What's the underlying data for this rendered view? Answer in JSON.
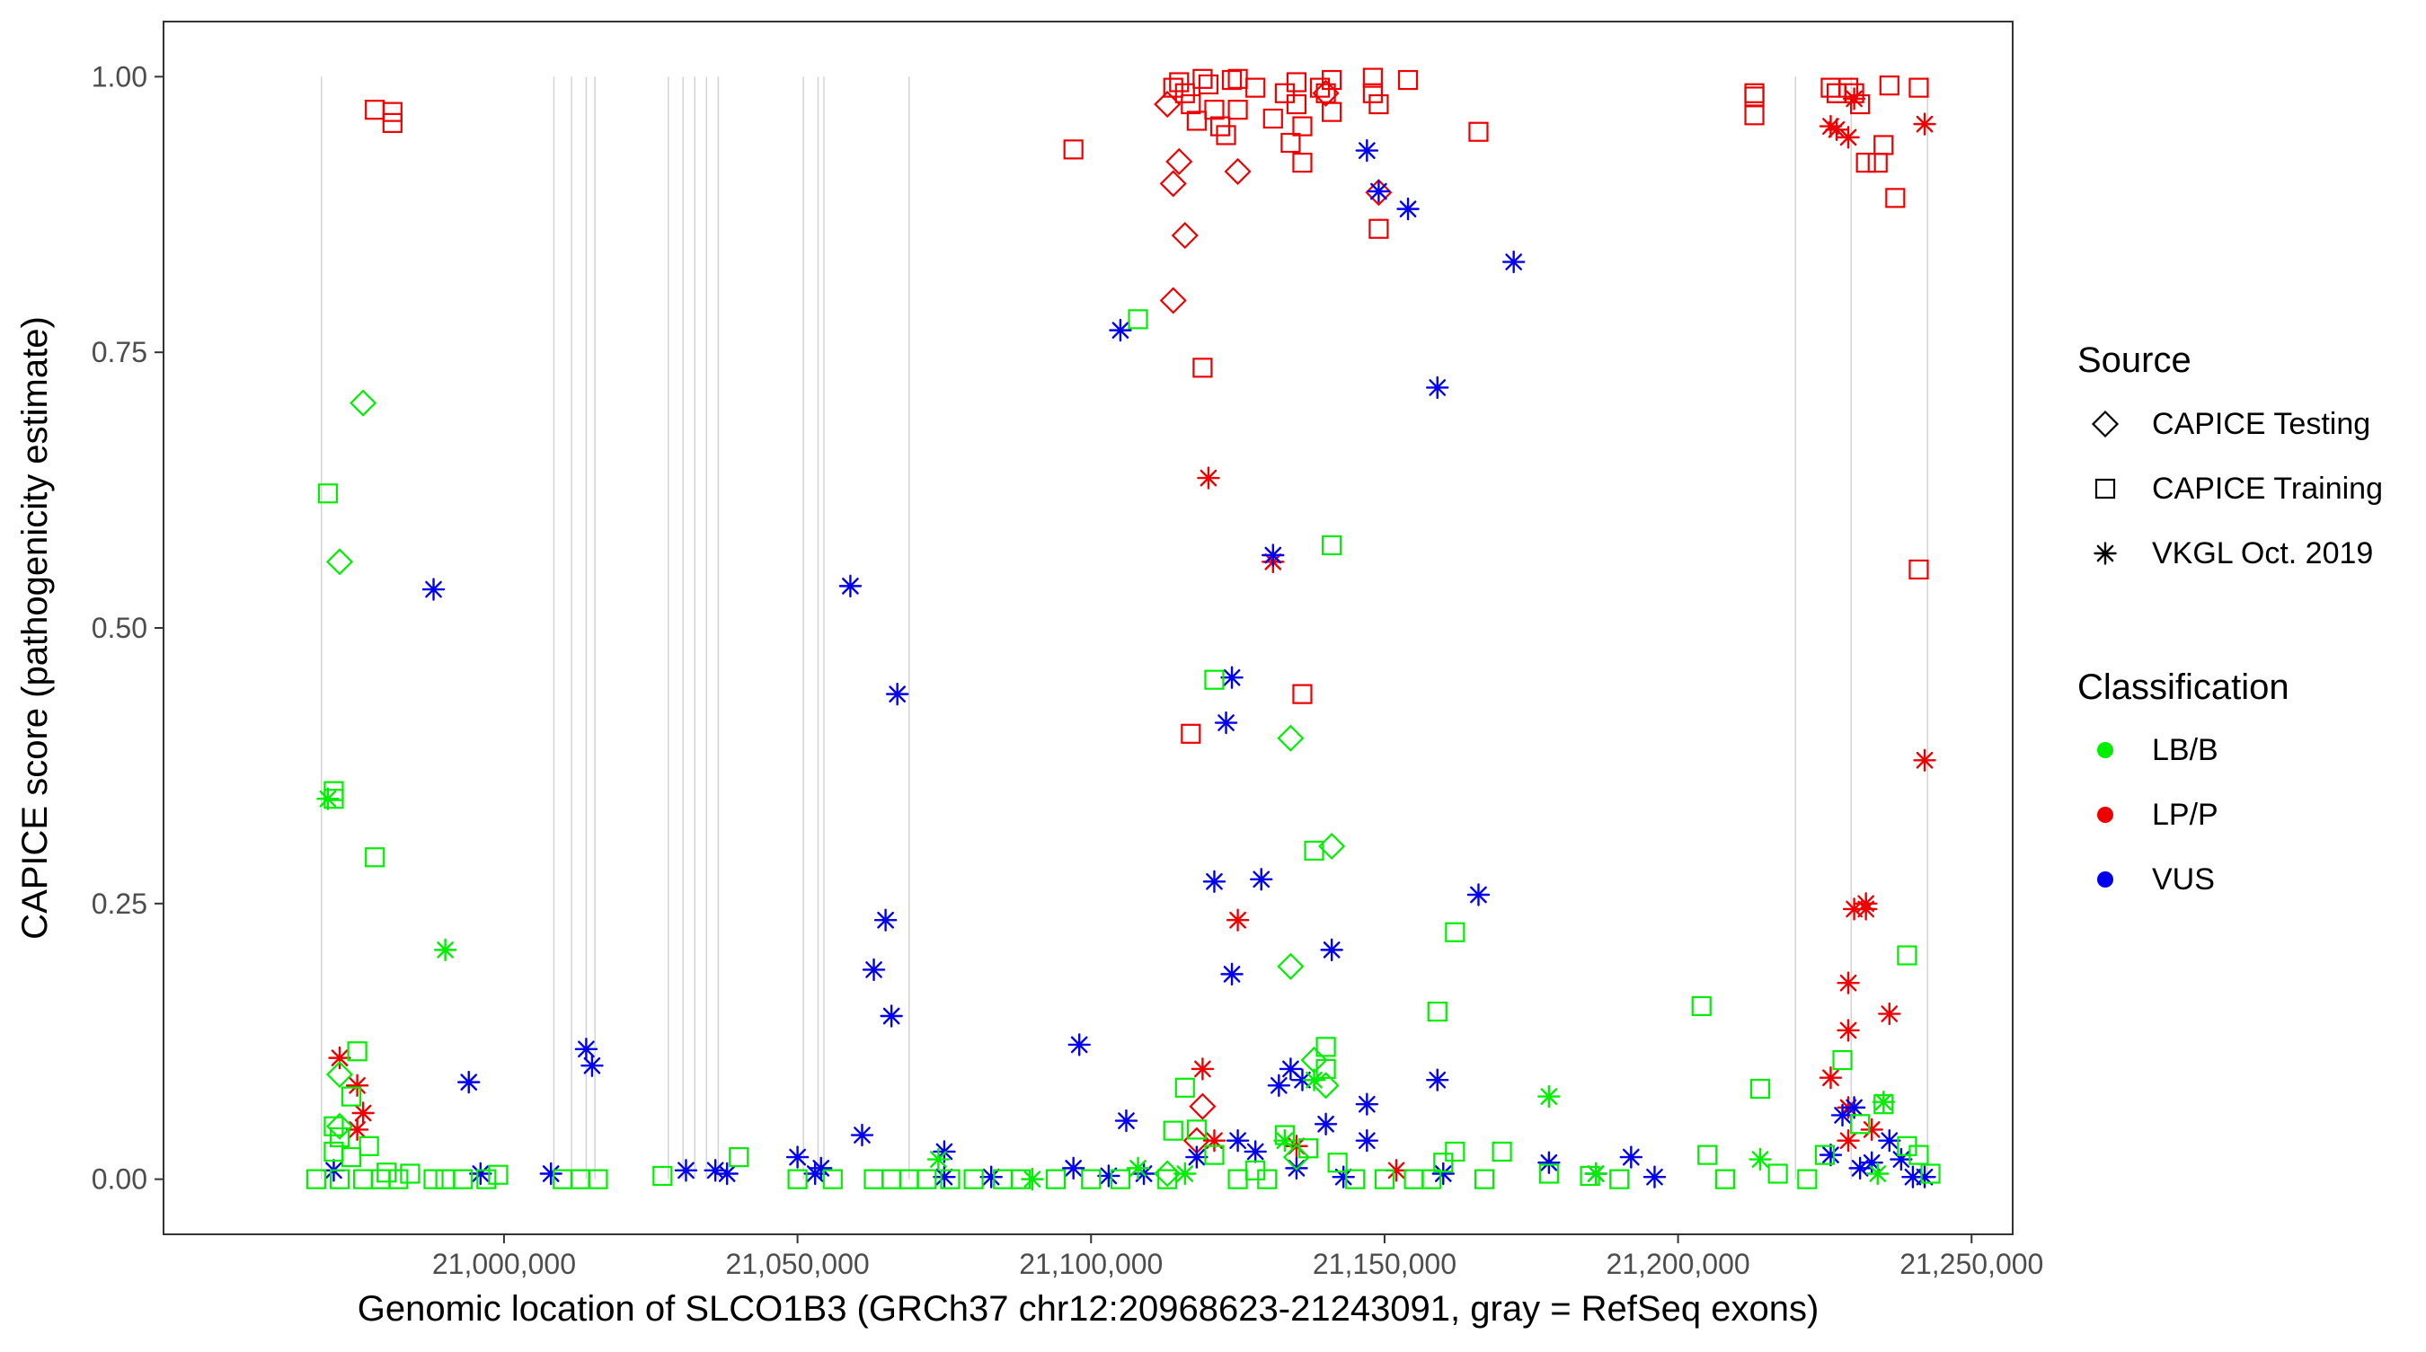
{
  "chart_data": {
    "type": "scatter",
    "xlabel": "Genomic location of SLCO1B3 (GRCh37 chr12:20968623-21243091, gray = RefSeq exons)",
    "ylabel": "CAPICE score (pathogenicity estimate)",
    "xlim": [
      20942000,
      21257000
    ],
    "ylim": [
      -0.05,
      1.05
    ],
    "xticks": [
      21000000,
      21050000,
      21100000,
      21150000,
      21200000,
      21250000
    ],
    "xtick_labels": [
      "21,000,000",
      "21,050,000",
      "21,100,000",
      "21,150,000",
      "21,200,000",
      "21,250,000"
    ],
    "yticks": [
      0,
      0.25,
      0.5,
      0.75,
      1
    ],
    "ytick_labels": [
      "0.00",
      "0.25",
      "0.50",
      "0.75",
      "1.00"
    ],
    "grid": false,
    "exon_lines_color": "#d3d3d3",
    "exon_lines_x": [
      20968900,
      21008500,
      21011500,
      21014000,
      21015500,
      21028000,
      21030500,
      21032500,
      21034500,
      21036500,
      21051000,
      21053500,
      21054500,
      21069000,
      21220000,
      21229500,
      21242500
    ],
    "legend": {
      "placement": "right",
      "shape_title": "Source",
      "shape_items": [
        {
          "label": "CAPICE Testing",
          "shape": "diamond"
        },
        {
          "label": "CAPICE Training",
          "shape": "square"
        },
        {
          "label": "VKGL Oct. 2019",
          "shape": "asterisk"
        }
      ],
      "color_title": "Classification",
      "color_items": [
        {
          "label": "LB/B",
          "color": "#00ee00"
        },
        {
          "label": "LP/P",
          "color": "#ee0000"
        },
        {
          "label": "VUS",
          "color": "#0000ee"
        }
      ]
    },
    "series": [
      {
        "source": "CAPICE Training",
        "classification": "LP/P",
        "points": [
          [
            20978000,
            0.97
          ],
          [
            20981000,
            0.968
          ],
          [
            20981000,
            0.958
          ],
          [
            21097000,
            0.934
          ],
          [
            21114000,
            0.99
          ],
          [
            21115000,
            0.995
          ],
          [
            21116000,
            0.985
          ],
          [
            21117000,
            0.975
          ],
          [
            21118000,
            0.96
          ],
          [
            21119000,
            0.998
          ],
          [
            21120000,
            0.993
          ],
          [
            21121000,
            0.97
          ],
          [
            21122000,
            0.955
          ],
          [
            21123000,
            0.947
          ],
          [
            21124000,
            0.997
          ],
          [
            21125000,
            0.998
          ],
          [
            21125000,
            0.97
          ],
          [
            21128000,
            0.99
          ],
          [
            21131000,
            0.962
          ],
          [
            21133000,
            0.985
          ],
          [
            21134000,
            0.94
          ],
          [
            21135000,
            0.995
          ],
          [
            21135000,
            0.975
          ],
          [
            21136000,
            0.955
          ],
          [
            21136000,
            0.922
          ],
          [
            21139000,
            0.99
          ],
          [
            21140000,
            0.985
          ],
          [
            21141000,
            0.997
          ],
          [
            21141000,
            0.968
          ],
          [
            21148000,
            0.999
          ],
          [
            21148000,
            0.985
          ],
          [
            21149000,
            0.975
          ],
          [
            21149000,
            0.862
          ],
          [
            21154000,
            0.997
          ],
          [
            21166000,
            0.95
          ],
          [
            21119000,
            0.736
          ],
          [
            21117000,
            0.404
          ],
          [
            21136000,
            0.44
          ],
          [
            21213000,
            0.985
          ],
          [
            21213000,
            0.982
          ],
          [
            21213000,
            0.965
          ],
          [
            21226000,
            0.99
          ],
          [
            21227000,
            0.985
          ],
          [
            21229000,
            0.99
          ],
          [
            21230000,
            0.985
          ],
          [
            21231000,
            0.975
          ],
          [
            21232000,
            0.922
          ],
          [
            21234000,
            0.922
          ],
          [
            21235000,
            0.938
          ],
          [
            21236000,
            0.992
          ],
          [
            21237000,
            0.89
          ],
          [
            21241000,
            0.99
          ],
          [
            21241000,
            0.553
          ]
        ]
      },
      {
        "source": "CAPICE Testing",
        "classification": "LP/P",
        "points": [
          [
            21113000,
            0.975
          ],
          [
            21114000,
            0.903
          ],
          [
            21115000,
            0.923
          ],
          [
            21116000,
            0.856
          ],
          [
            21114000,
            0.797
          ],
          [
            21125000,
            0.914
          ],
          [
            21140000,
            0.985
          ],
          [
            21149000,
            0.895
          ],
          [
            21119000,
            0.066
          ],
          [
            21118000,
            0.035
          ]
        ]
      },
      {
        "source": "VKGL Oct. 2019",
        "classification": "LP/P",
        "points": [
          [
            20972000,
            0.11
          ],
          [
            20975000,
            0.085
          ],
          [
            20976000,
            0.06
          ],
          [
            20975000,
            0.045
          ],
          [
            21120000,
            0.636
          ],
          [
            21131000,
            0.56
          ],
          [
            21125000,
            0.235
          ],
          [
            21119000,
            0.1
          ],
          [
            21121000,
            0.035
          ],
          [
            21135000,
            0.03
          ],
          [
            21152000,
            0.008
          ],
          [
            21226000,
            0.955
          ],
          [
            21227000,
            0.952
          ],
          [
            21229000,
            0.945
          ],
          [
            21230000,
            0.98
          ],
          [
            21242000,
            0.957
          ],
          [
            21242000,
            0.38
          ],
          [
            21230000,
            0.245
          ],
          [
            21232000,
            0.245
          ],
          [
            21232000,
            0.25
          ],
          [
            21229000,
            0.178
          ],
          [
            21229000,
            0.135
          ],
          [
            21236000,
            0.15
          ],
          [
            21226000,
            0.092
          ],
          [
            21229000,
            0.065
          ],
          [
            21233000,
            0.045
          ],
          [
            21229000,
            0.035
          ]
        ]
      },
      {
        "source": "VKGL Oct. 2019",
        "classification": "VUS",
        "points": [
          [
            20988000,
            0.535
          ],
          [
            20994000,
            0.088
          ],
          [
            20996000,
            0.005
          ],
          [
            21008000,
            0.005
          ],
          [
            21014000,
            0.118
          ],
          [
            21015000,
            0.103
          ],
          [
            21031000,
            0.008
          ],
          [
            21036000,
            0.008
          ],
          [
            21038000,
            0.005
          ],
          [
            21050000,
            0.02
          ],
          [
            21053000,
            0.005
          ],
          [
            21054000,
            0.01
          ],
          [
            21059000,
            0.538
          ],
          [
            21067000,
            0.44
          ],
          [
            21065000,
            0.235
          ],
          [
            21063000,
            0.19
          ],
          [
            21066000,
            0.148
          ],
          [
            21061000,
            0.04
          ],
          [
            21075000,
            0.025
          ],
          [
            21075000,
            0.002
          ],
          [
            21083000,
            0.002
          ],
          [
            21097000,
            0.01
          ],
          [
            21098000,
            0.122
          ],
          [
            21105000,
            0.77
          ],
          [
            21106000,
            0.053
          ],
          [
            21103000,
            0.003
          ],
          [
            21109000,
            0.005
          ],
          [
            21121000,
            0.27
          ],
          [
            21124000,
            0.455
          ],
          [
            21123000,
            0.414
          ],
          [
            21124000,
            0.186
          ],
          [
            21125000,
            0.035
          ],
          [
            21129000,
            0.272
          ],
          [
            21131000,
            0.566
          ],
          [
            21132000,
            0.085
          ],
          [
            21134000,
            0.1
          ],
          [
            21136000,
            0.09
          ],
          [
            21140000,
            0.05
          ],
          [
            21141000,
            0.208
          ],
          [
            21143000,
            0.002
          ],
          [
            21147000,
            0.933
          ],
          [
            21149000,
            0.896
          ],
          [
            21154000,
            0.88
          ],
          [
            21159000,
            0.718
          ],
          [
            21159000,
            0.09
          ],
          [
            21166000,
            0.258
          ],
          [
            21172000,
            0.832
          ],
          [
            21147000,
            0.068
          ],
          [
            21147000,
            0.035
          ],
          [
            21160000,
            0.005
          ],
          [
            21178000,
            0.015
          ],
          [
            21186000,
            0.005
          ],
          [
            21192000,
            0.02
          ],
          [
            21196000,
            0.002
          ],
          [
            21226000,
            0.022
          ],
          [
            21228000,
            0.058
          ],
          [
            21230000,
            0.065
          ],
          [
            21231000,
            0.01
          ],
          [
            21233000,
            0.015
          ],
          [
            21236000,
            0.035
          ],
          [
            21238000,
            0.018
          ],
          [
            21240000,
            0.002
          ],
          [
            21242000,
            0.002
          ],
          [
            21128000,
            0.025
          ],
          [
            21118000,
            0.02
          ],
          [
            21135000,
            0.01
          ],
          [
            20971000,
            0.008
          ]
        ]
      },
      {
        "source": "CAPICE Training",
        "classification": "LB/B",
        "points": [
          [
            20970000,
            0.622
          ],
          [
            20971000,
            0.352
          ],
          [
            20971000,
            0.345
          ],
          [
            20978000,
            0.292
          ],
          [
            20975000,
            0.116
          ],
          [
            20974000,
            0.075
          ],
          [
            20971000,
            0.048
          ],
          [
            20972000,
            0.038
          ],
          [
            20971000,
            0.025
          ],
          [
            20974000,
            0.02
          ],
          [
            20977000,
            0.03
          ],
          [
            20980000,
            0.006
          ],
          [
            20968000,
            0.0
          ],
          [
            20972000,
            0.0
          ],
          [
            20976000,
            0.0
          ],
          [
            20979000,
            0.0
          ],
          [
            20982000,
            0.0
          ],
          [
            20984000,
            0.005
          ],
          [
            20988000,
            0.0
          ],
          [
            20990000,
            0.0
          ],
          [
            20993000,
            0.0
          ],
          [
            20997000,
            0.0
          ],
          [
            20999000,
            0.004
          ],
          [
            21010000,
            0.0
          ],
          [
            21013000,
            0.0
          ],
          [
            21016000,
            0.0
          ],
          [
            21027000,
            0.003
          ],
          [
            21040000,
            0.02
          ],
          [
            21050000,
            0.0
          ],
          [
            21056000,
            0.0
          ],
          [
            21063000,
            0.0
          ],
          [
            21066000,
            0.0
          ],
          [
            21069000,
            0.0
          ],
          [
            21072000,
            0.0
          ],
          [
            21076000,
            0.0
          ],
          [
            21080000,
            0.0
          ],
          [
            21085000,
            0.0
          ],
          [
            21088000,
            0.0
          ],
          [
            21094000,
            0.0
          ],
          [
            21100000,
            0.0
          ],
          [
            21105000,
            0.0
          ],
          [
            21108000,
            0.78
          ],
          [
            21121000,
            0.453
          ],
          [
            21138000,
            0.298
          ],
          [
            21141000,
            0.575
          ],
          [
            21133000,
            0.04
          ],
          [
            21140000,
            0.12
          ],
          [
            21140000,
            0.1
          ],
          [
            21114000,
            0.044
          ],
          [
            21116000,
            0.083
          ],
          [
            21118000,
            0.045
          ],
          [
            21121000,
            0.022
          ],
          [
            21128000,
            0.008
          ],
          [
            21137000,
            0.028
          ],
          [
            21142000,
            0.015
          ],
          [
            21162000,
            0.224
          ],
          [
            21159000,
            0.152
          ],
          [
            21162000,
            0.025
          ],
          [
            21160000,
            0.015
          ],
          [
            21170000,
            0.025
          ],
          [
            21167000,
            0.0
          ],
          [
            21178000,
            0.005
          ],
          [
            21185000,
            0.003
          ],
          [
            21190000,
            0.0
          ],
          [
            21204000,
            0.157
          ],
          [
            21205000,
            0.022
          ],
          [
            21208000,
            0.0
          ],
          [
            21214000,
            0.082
          ],
          [
            21217000,
            0.005
          ],
          [
            21222000,
            0.0
          ],
          [
            21228000,
            0.108
          ],
          [
            21225000,
            0.022
          ],
          [
            21231000,
            0.05
          ],
          [
            21235000,
            0.068
          ],
          [
            21239000,
            0.203
          ],
          [
            21239000,
            0.03
          ],
          [
            21241000,
            0.022
          ],
          [
            21243000,
            0.005
          ],
          [
            21113000,
            0.0
          ],
          [
            21125000,
            0.0
          ],
          [
            21130000,
            0.0
          ],
          [
            21145000,
            0.0
          ],
          [
            21150000,
            0.0
          ],
          [
            21155000,
            0.0
          ],
          [
            21158000,
            0.0
          ]
        ]
      },
      {
        "source": "CAPICE Testing",
        "classification": "LB/B",
        "points": [
          [
            20976000,
            0.704
          ],
          [
            20972000,
            0.56
          ],
          [
            20972000,
            0.095
          ],
          [
            20972000,
            0.048
          ],
          [
            21134000,
            0.4
          ],
          [
            21141000,
            0.302
          ],
          [
            21134000,
            0.193
          ],
          [
            21138000,
            0.108
          ],
          [
            21140000,
            0.085
          ],
          [
            21135000,
            0.02
          ],
          [
            21113000,
            0.005
          ]
        ]
      },
      {
        "source": "VKGL Oct. 2019",
        "classification": "LB/B",
        "points": [
          [
            20970000,
            0.345
          ],
          [
            20990000,
            0.208
          ],
          [
            21178000,
            0.075
          ],
          [
            21235000,
            0.07
          ],
          [
            21138000,
            0.09
          ],
          [
            21133000,
            0.035
          ],
          [
            21074000,
            0.018
          ],
          [
            21108000,
            0.01
          ],
          [
            21090000,
            0.0
          ],
          [
            21116000,
            0.005
          ],
          [
            21214000,
            0.018
          ],
          [
            21234000,
            0.005
          ],
          [
            21186000,
            0.005
          ]
        ]
      }
    ]
  }
}
